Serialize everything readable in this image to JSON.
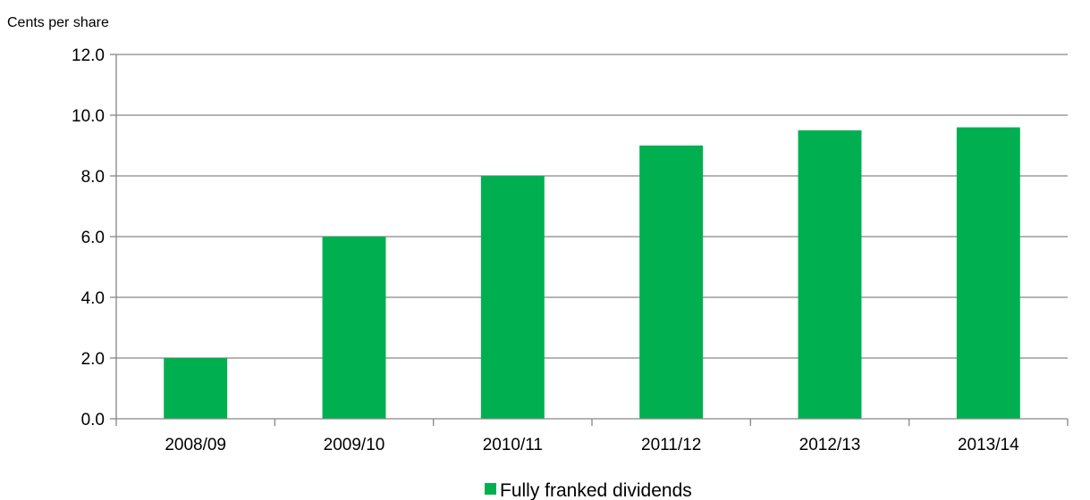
{
  "chart_data": {
    "type": "bar",
    "ylabel": "Cents per share",
    "categories": [
      "2008/09",
      "2009/10",
      "2010/11",
      "2011/12",
      "2012/13",
      "2013/14"
    ],
    "series": [
      {
        "name": "Fully franked dividends",
        "values": [
          2.0,
          6.0,
          8.0,
          9.0,
          9.5,
          9.6
        ]
      }
    ],
    "ylim": [
      0,
      12
    ],
    "yticks": [
      0,
      2,
      4,
      6,
      8,
      10,
      12
    ],
    "ytick_labels": [
      "0.0",
      "2.0",
      "4.0",
      "6.0",
      "8.0",
      "10.0",
      "12.0"
    ],
    "grid": true,
    "legend_position": "bottom",
    "colors": {
      "bar": "#00b050",
      "grid": "#868686",
      "axis": "#868686"
    }
  }
}
